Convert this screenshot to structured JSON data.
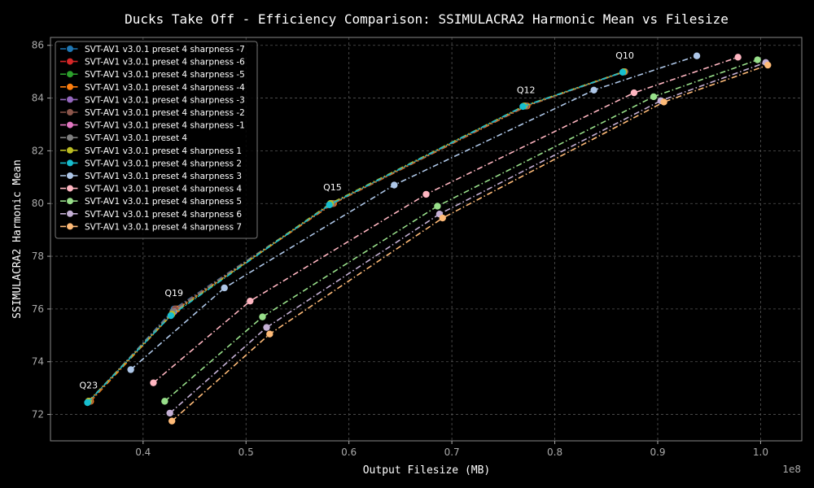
{
  "chart_data": {
    "type": "line",
    "title": "Ducks Take Off - Efficiency Comparison: SSIMULACRA2 Harmonic Mean vs Filesize",
    "xlabel": "Output Filesize (MB)",
    "ylabel": "SSIMULACRA2 Harmonic Mean",
    "x_offset_text": "1e8",
    "xlim": [
      0.31,
      1.04
    ],
    "ylim": [
      71.0,
      86.3
    ],
    "xticks": [
      0.4,
      0.5,
      0.6,
      0.7,
      0.8,
      0.9,
      1.0
    ],
    "xtick_labels": [
      "0.4",
      "0.5",
      "0.6",
      "0.7",
      "0.8",
      "0.9",
      "1.0"
    ],
    "yticks": [
      72,
      74,
      76,
      78,
      80,
      82,
      84,
      86
    ],
    "ytick_labels": [
      "72",
      "74",
      "76",
      "78",
      "80",
      "82",
      "84",
      "86"
    ],
    "grid": true,
    "legend_position": "upper-left",
    "annotations": [
      {
        "text": "Q23",
        "x": 0.347,
        "y": 72.5
      },
      {
        "text": "Q19",
        "x": 0.43,
        "y": 76.0
      },
      {
        "text": "Q15",
        "x": 0.584,
        "y": 80.0
      },
      {
        "text": "Q12",
        "x": 0.772,
        "y": 83.7
      },
      {
        "text": "Q10",
        "x": 0.868,
        "y": 85.0
      }
    ],
    "series": [
      {
        "name": "SVT-AV1 v3.0.1 preset 4 sharpness -7",
        "color": "#1f77b4",
        "x": [
          0.348,
          0.43,
          0.584,
          0.772,
          0.868
        ],
        "y": [
          72.5,
          76.0,
          80.0,
          83.7,
          85.0
        ]
      },
      {
        "name": "SVT-AV1 v3.0.1 preset 4 sharpness -6",
        "color": "#d62728",
        "x": [
          0.348,
          0.432,
          0.584,
          0.772,
          0.868
        ],
        "y": [
          72.5,
          76.0,
          80.0,
          83.7,
          85.0
        ]
      },
      {
        "name": "SVT-AV1 v3.0.1 preset 4 sharpness -5",
        "color": "#2ca02c",
        "x": [
          0.348,
          0.432,
          0.584,
          0.772,
          0.868
        ],
        "y": [
          72.5,
          76.0,
          80.0,
          83.7,
          85.0
        ]
      },
      {
        "name": "SVT-AV1 v3.0.1 preset 4 sharpness -4",
        "color": "#ff7f0e",
        "x": [
          0.349,
          0.433,
          0.585,
          0.773,
          0.868
        ],
        "y": [
          72.5,
          76.0,
          80.0,
          83.7,
          85.0
        ]
      },
      {
        "name": "SVT-AV1 v3.0.1 preset 4 sharpness -3",
        "color": "#9467bd",
        "x": [
          0.348,
          0.431,
          0.584,
          0.772,
          0.868
        ],
        "y": [
          72.5,
          76.0,
          80.0,
          83.7,
          85.0
        ]
      },
      {
        "name": "SVT-AV1 v3.0.1 preset 4 sharpness -2",
        "color": "#8c564b",
        "x": [
          0.348,
          0.431,
          0.584,
          0.772,
          0.868
        ],
        "y": [
          72.5,
          76.0,
          80.0,
          83.7,
          85.0
        ]
      },
      {
        "name": "SVT-AV1 v3.0.1 preset 4 sharpness -1",
        "color": "#e377c2",
        "x": [
          0.347,
          0.43,
          0.583,
          0.771,
          0.867
        ],
        "y": [
          72.5,
          75.9,
          80.0,
          83.7,
          85.0
        ]
      },
      {
        "name": "SVT-AV1 v3.0.1 preset 4",
        "color": "#7f7f7f",
        "x": [
          0.347,
          0.429,
          0.583,
          0.771,
          0.867
        ],
        "y": [
          72.5,
          75.9,
          80.0,
          83.7,
          85.0
        ]
      },
      {
        "name": "SVT-AV1 v3.0.1 preset 4 sharpness 1",
        "color": "#bcbd22",
        "x": [
          0.347,
          0.428,
          0.582,
          0.77,
          0.867
        ],
        "y": [
          72.5,
          75.8,
          80.0,
          83.7,
          85.0
        ]
      },
      {
        "name": "SVT-AV1 v3.0.1 preset 4 sharpness 2",
        "color": "#17becf",
        "x": [
          0.346,
          0.427,
          0.581,
          0.769,
          0.866
        ],
        "y": [
          72.45,
          75.75,
          79.95,
          83.68,
          84.98
        ]
      },
      {
        "name": "SVT-AV1 v3.0.1 preset 4 sharpness 3",
        "color": "#aec7e8",
        "x": [
          0.388,
          0.479,
          0.644,
          0.838,
          0.938
        ],
        "y": [
          73.7,
          76.8,
          80.7,
          84.3,
          85.6
        ]
      },
      {
        "name": "SVT-AV1 v3.0.1 preset 4 sharpness 4",
        "color": "#ffb6c1",
        "x": [
          0.41,
          0.504,
          0.675,
          0.877,
          0.978
        ],
        "y": [
          73.2,
          76.3,
          80.35,
          84.2,
          85.55
        ]
      },
      {
        "name": "SVT-AV1 v3.0.1 preset 4 sharpness 5",
        "color": "#98df8a",
        "x": [
          0.421,
          0.516,
          0.686,
          0.896,
          0.997
        ],
        "y": [
          72.5,
          75.7,
          79.9,
          84.05,
          85.45
        ]
      },
      {
        "name": "SVT-AV1 v3.0.1 preset 4 sharpness 6",
        "color": "#c5b0d5",
        "x": [
          0.426,
          0.52,
          0.688,
          0.903,
          1.005
        ],
        "y": [
          72.05,
          75.3,
          79.6,
          83.9,
          85.35
        ]
      },
      {
        "name": "SVT-AV1 v3.0.1 preset 4 sharpness 7",
        "color": "#ffbb78",
        "x": [
          0.428,
          0.523,
          0.691,
          0.906,
          1.007
        ],
        "y": [
          71.75,
          75.05,
          79.45,
          83.85,
          85.25
        ]
      }
    ]
  }
}
